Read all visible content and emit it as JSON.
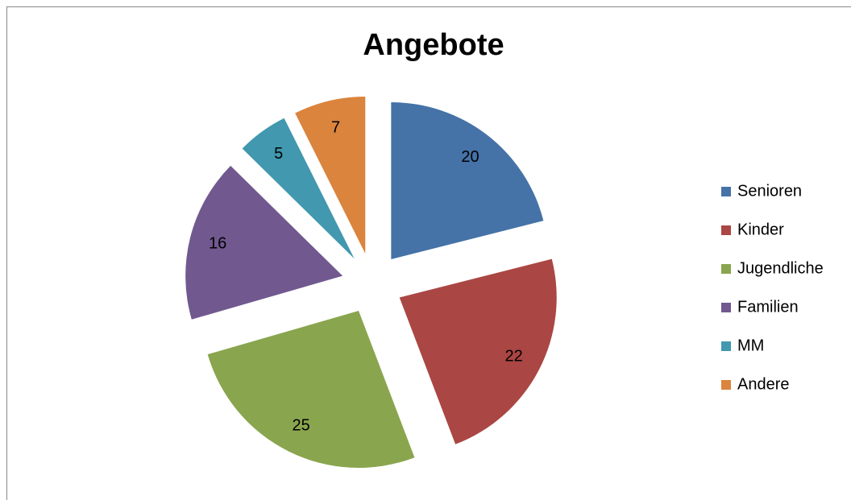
{
  "chart_data": {
    "type": "pie",
    "title": "Angebote",
    "categories": [
      "Senioren",
      "Kinder",
      "Jugendliche",
      "Familien",
      "MM",
      "Andere"
    ],
    "values": [
      20,
      22,
      25,
      16,
      5,
      7
    ],
    "colors": [
      "#4572a7",
      "#aa4643",
      "#89a54e",
      "#71588f",
      "#4198af",
      "#db843d"
    ],
    "exploded": true,
    "legend": "right"
  }
}
